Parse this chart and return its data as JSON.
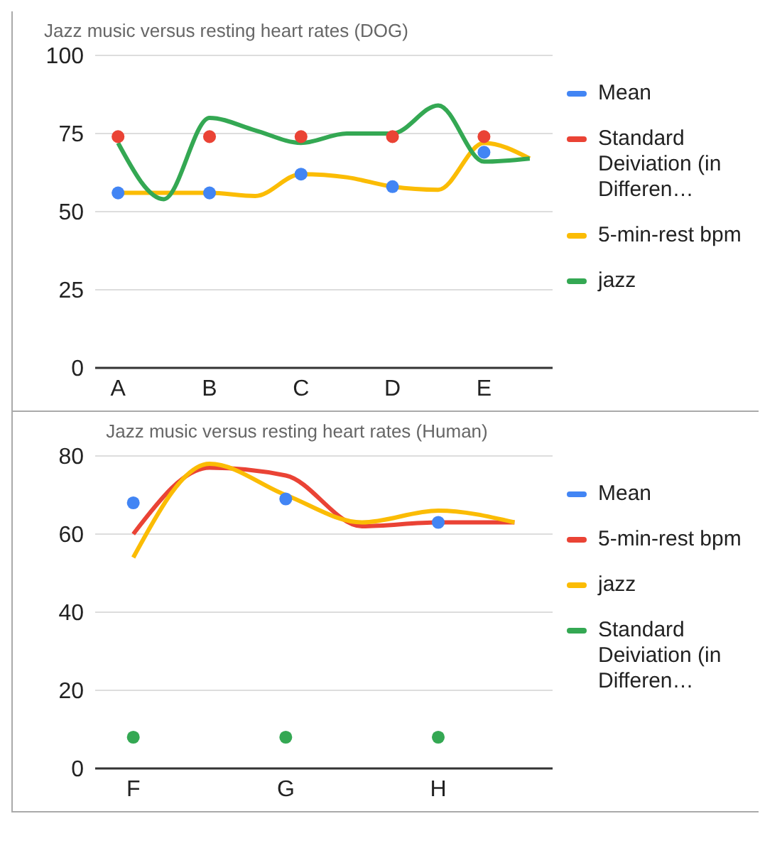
{
  "chart_data": [
    {
      "type": "line",
      "title": "Jazz music versus resting heart rates (DOG)",
      "categories": [
        "A",
        null,
        "B",
        null,
        "C",
        null,
        "D",
        null,
        "E",
        null
      ],
      "ylim": [
        0,
        100
      ],
      "yticks": [
        0,
        25,
        50,
        75,
        100
      ],
      "grid": "y",
      "legend": "right",
      "marker": "none",
      "series": [
        {
          "name": "Mean",
          "type": "scatter",
          "marker": "circle",
          "color": "#4285f4",
          "values": [
            56,
            null,
            56,
            null,
            62,
            null,
            58,
            null,
            69,
            null
          ]
        },
        {
          "name": "Standard Deiviation (in Differen…",
          "type": "scatter",
          "marker": "circle",
          "color": "#ea4335",
          "values": [
            74,
            null,
            74,
            null,
            74,
            null,
            74,
            null,
            74,
            null
          ]
        },
        {
          "name": "5-min-rest bpm",
          "color": "#fbbc04",
          "values": [
            56,
            56,
            56,
            55,
            62,
            61,
            58,
            57,
            72,
            67
          ]
        },
        {
          "name": "jazz",
          "color": "#34a853",
          "values": [
            72,
            54,
            80,
            76,
            72,
            75,
            75,
            84,
            66,
            67
          ]
        }
      ]
    },
    {
      "type": "line",
      "title": "Jazz music versus resting heart rates (Human)",
      "categories": [
        "F",
        null,
        "G",
        null,
        "H",
        null
      ],
      "ylim": [
        0,
        80
      ],
      "yticks": [
        0,
        20,
        40,
        60,
        80
      ],
      "grid": "y",
      "legend": "right",
      "marker": "none",
      "series": [
        {
          "name": "Mean",
          "type": "scatter",
          "marker": "circle",
          "color": "#4285f4",
          "values": [
            68,
            null,
            69,
            null,
            63,
            null
          ]
        },
        {
          "name": "5-min-rest bpm",
          "color": "#ea4335",
          "values": [
            60,
            77,
            75,
            62,
            63,
            63
          ]
        },
        {
          "name": "jazz",
          "color": "#fbbc04",
          "values": [
            54,
            78,
            70,
            63,
            66,
            63
          ]
        },
        {
          "name": "Standard Deiviation (in Differen…",
          "type": "scatter",
          "marker": "circle",
          "color": "#34a853",
          "values": [
            8,
            null,
            8,
            null,
            8,
            null
          ]
        }
      ]
    }
  ]
}
